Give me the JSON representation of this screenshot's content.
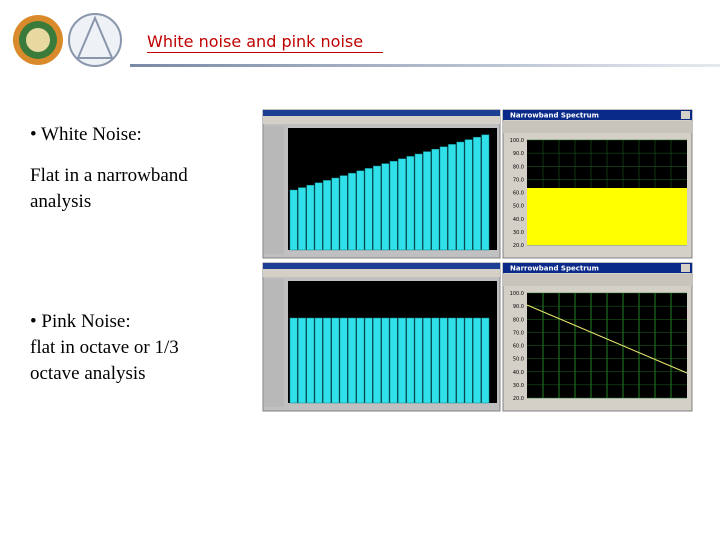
{
  "header": {
    "title": "White noise and pink noise"
  },
  "bullets": [
    {
      "heading": "• White Noise:",
      "lines": [
        "Flat in a narrowband",
        "analysis"
      ]
    },
    {
      "heading": "• Pink Noise:",
      "lines": [
        "flat in octave or 1/3",
        "octave analysis"
      ]
    }
  ],
  "screenshots": [
    {
      "window_title": "Narrowband Spectrum",
      "y_labels": [
        "100.0",
        "90.0",
        "80.0",
        "70.0",
        "60.0",
        "50.0",
        "40.0",
        "30.0",
        "20.0"
      ]
    },
    {
      "window_title": "Narrowband Spectrum",
      "y_labels": [
        "100.0",
        "90.0",
        "80.0",
        "70.0",
        "60.0",
        "50.0",
        "40.0",
        "30.0",
        "20.0"
      ]
    }
  ]
}
